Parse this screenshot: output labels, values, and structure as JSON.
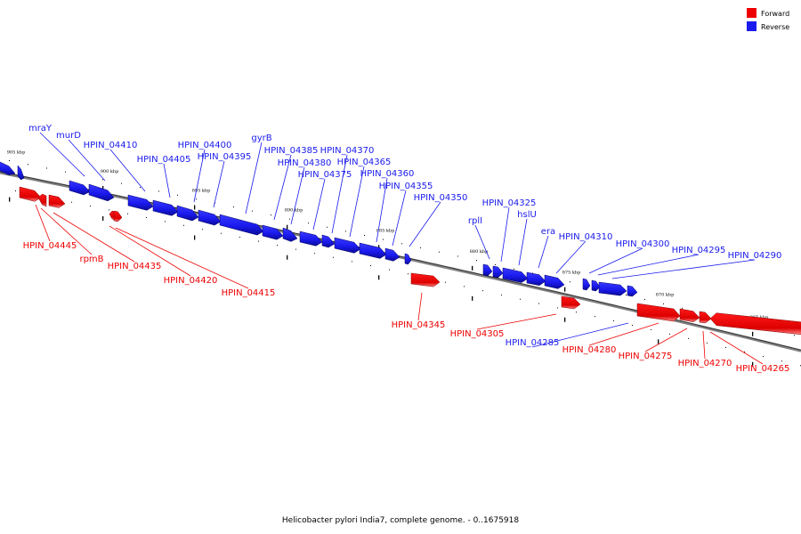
{
  "caption": "Helicobacter pylori India7, complete genome. - 0..1675918",
  "colors": {
    "forward": "#ee0000",
    "reverse": "#1a1aee",
    "backbone": "#808080"
  },
  "legend": [
    {
      "name": "Forward",
      "strand": "forward"
    },
    {
      "name": "Reverse",
      "strand": "reverse"
    }
  ],
  "scale_labels": [
    "905 kbp",
    "900 kbp",
    "895 kbp",
    "890 kbp",
    "885 kbp",
    "880 kbp",
    "875 kbp",
    "870 kbp",
    "865 kbp"
  ],
  "features": [
    {
      "name": "mraY",
      "strand": "reverse"
    },
    {
      "name": "murD",
      "strand": "reverse"
    },
    {
      "name": "HPIN_04410",
      "strand": "reverse"
    },
    {
      "name": "HPIN_04405",
      "strand": "reverse"
    },
    {
      "name": "HPIN_04400",
      "strand": "reverse"
    },
    {
      "name": "HPIN_04395",
      "strand": "reverse"
    },
    {
      "name": "gyrB",
      "strand": "reverse"
    },
    {
      "name": "HPIN_04385",
      "strand": "reverse"
    },
    {
      "name": "HPIN_04380",
      "strand": "reverse"
    },
    {
      "name": "HPIN_04375",
      "strand": "reverse"
    },
    {
      "name": "HPIN_04370",
      "strand": "reverse"
    },
    {
      "name": "HPIN_04365",
      "strand": "reverse"
    },
    {
      "name": "HPIN_04360",
      "strand": "reverse"
    },
    {
      "name": "HPIN_04355",
      "strand": "reverse"
    },
    {
      "name": "HPIN_04350",
      "strand": "reverse"
    },
    {
      "name": "rplI",
      "strand": "reverse"
    },
    {
      "name": "HPIN_04325",
      "strand": "reverse"
    },
    {
      "name": "hslU",
      "strand": "reverse"
    },
    {
      "name": "era",
      "strand": "reverse"
    },
    {
      "name": "HPIN_04310",
      "strand": "reverse"
    },
    {
      "name": "HPIN_04300",
      "strand": "reverse"
    },
    {
      "name": "HPIN_04295",
      "strand": "reverse"
    },
    {
      "name": "HPIN_04290",
      "strand": "reverse"
    },
    {
      "name": "HPIN_04285",
      "strand": "reverse"
    },
    {
      "name": "HPIN_04445",
      "strand": "forward"
    },
    {
      "name": "rpmB",
      "strand": "forward"
    },
    {
      "name": "HPIN_04435",
      "strand": "forward"
    },
    {
      "name": "HPIN_04420",
      "strand": "forward"
    },
    {
      "name": "HPIN_04415",
      "strand": "forward"
    },
    {
      "name": "HPIN_04345",
      "strand": "forward"
    },
    {
      "name": "HPIN_04305",
      "strand": "forward"
    },
    {
      "name": "HPIN_04280",
      "strand": "forward"
    },
    {
      "name": "HPIN_04275",
      "strand": "forward"
    },
    {
      "name": "HPIN_04270",
      "strand": "forward"
    },
    {
      "name": "HPIN_04265",
      "strand": "forward"
    }
  ]
}
